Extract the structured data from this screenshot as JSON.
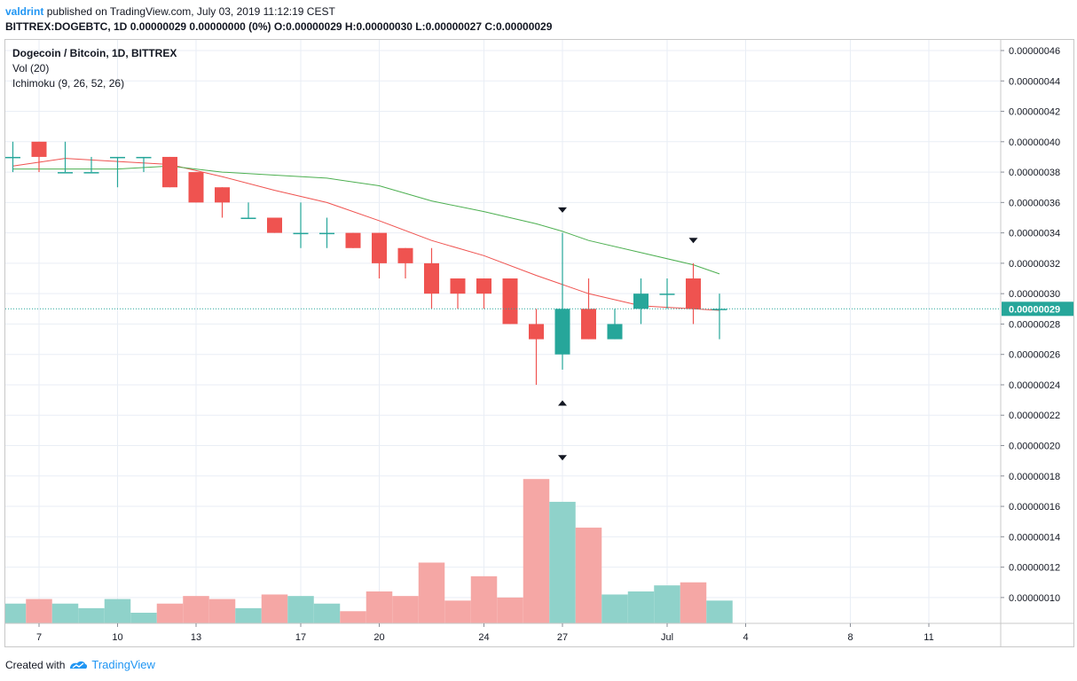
{
  "header": {
    "user": "valdrint",
    "published_text": "published on TradingView.com, July 03, 2019 11:12:19 CEST",
    "symbol": "BITTREX:DOGEBTC, 1D",
    "ohlc_text": "0.00000029 0.00000000 (0%) O:0.00000029 H:0.00000030 L:0.00000027 C:0.00000029"
  },
  "legend": {
    "title": "Dogecoin / Bitcoin, 1D, BITTREX",
    "vol": "Vol (20)",
    "ichimoku": "Ichimoku (9, 26, 52, 26)"
  },
  "footer": {
    "created_with": "Created with",
    "brand": "TradingView"
  },
  "chart_data": {
    "type": "candlestick",
    "title": "Dogecoin / Bitcoin, 1D, BITTREX",
    "y_range": [
      8.3e-08,
      4.67e-07
    ],
    "y_ticks": [
      4.6e-07,
      4.4e-07,
      4.2e-07,
      4e-07,
      3.8e-07,
      3.6e-07,
      3.4e-07,
      3.2e-07,
      3e-07,
      2.8e-07,
      2.6e-07,
      2.4e-07,
      2.2e-07,
      2e-07,
      1.8e-07,
      1.6e-07,
      1.4e-07,
      1.2e-07,
      1e-07
    ],
    "y_tick_labels": [
      "0.00000046",
      "0.00000044",
      "0.00000042",
      "0.00000040",
      "0.00000038",
      "0.00000036",
      "0.00000034",
      "0.00000032",
      "0.00000030",
      "0.00000028",
      "0.00000026",
      "0.00000024",
      "0.00000022",
      "0.00000020",
      "0.00000018",
      "0.00000016",
      "0.00000014",
      "0.00000012",
      "0.00000010"
    ],
    "x_tick_labels": [
      {
        "label": "7",
        "day": 7
      },
      {
        "label": "10",
        "day": 10
      },
      {
        "label": "13",
        "day": 13
      },
      {
        "label": "17",
        "day": 17
      },
      {
        "label": "20",
        "day": 20
      },
      {
        "label": "24",
        "day": 24
      },
      {
        "label": "27",
        "day": 27
      },
      {
        "label": "Jul",
        "day": 31
      },
      {
        "label": "4",
        "day": 34
      },
      {
        "label": "8",
        "day": 38
      },
      {
        "label": "11",
        "day": 41
      }
    ],
    "last_price_label": "0.00000029",
    "last_price": 2.9e-07,
    "candles": [
      {
        "day": 6,
        "o": 3.9e-07,
        "h": 4e-07,
        "l": 3.8e-07,
        "c": 3.9e-07,
        "vol": 9.6e-08
      },
      {
        "day": 7,
        "o": 4e-07,
        "h": 4e-07,
        "l": 3.8e-07,
        "c": 3.9e-07,
        "vol": 9.9e-08
      },
      {
        "day": 8,
        "o": 3.8e-07,
        "h": 4e-07,
        "l": 3.8e-07,
        "c": 3.8e-07,
        "vol": 9.6e-08
      },
      {
        "day": 9,
        "o": 3.8e-07,
        "h": 3.9e-07,
        "l": 3.8e-07,
        "c": 3.8e-07,
        "vol": 9.3e-08
      },
      {
        "day": 10,
        "o": 3.9e-07,
        "h": 3.9e-07,
        "l": 3.7e-07,
        "c": 3.9e-07,
        "vol": 9.9e-08
      },
      {
        "day": 11,
        "o": 3.9e-07,
        "h": 3.9e-07,
        "l": 3.8e-07,
        "c": 3.9e-07,
        "vol": 9e-08
      },
      {
        "day": 12,
        "o": 3.9e-07,
        "h": 3.9e-07,
        "l": 3.7e-07,
        "c": 3.7e-07,
        "vol": 9.6e-08
      },
      {
        "day": 13,
        "o": 3.8e-07,
        "h": 3.8e-07,
        "l": 3.6e-07,
        "c": 3.6e-07,
        "vol": 1.01e-07
      },
      {
        "day": 14,
        "o": 3.7e-07,
        "h": 3.7e-07,
        "l": 3.5e-07,
        "c": 3.6e-07,
        "vol": 9.9e-08
      },
      {
        "day": 15,
        "o": 3.5e-07,
        "h": 3.6e-07,
        "l": 3.5e-07,
        "c": 3.5e-07,
        "vol": 9.3e-08
      },
      {
        "day": 16,
        "o": 3.5e-07,
        "h": 3.5e-07,
        "l": 3.4e-07,
        "c": 3.4e-07,
        "vol": 1.02e-07
      },
      {
        "day": 17,
        "o": 3.4e-07,
        "h": 3.6e-07,
        "l": 3.3e-07,
        "c": 3.4e-07,
        "vol": 1.01e-07
      },
      {
        "day": 18,
        "o": 3.4e-07,
        "h": 3.5e-07,
        "l": 3.3e-07,
        "c": 3.4e-07,
        "vol": 9.6e-08
      },
      {
        "day": 19,
        "o": 3.4e-07,
        "h": 3.4e-07,
        "l": 3.3e-07,
        "c": 3.3e-07,
        "vol": 9.1e-08
      },
      {
        "day": 20,
        "o": 3.4e-07,
        "h": 3.4e-07,
        "l": 3.1e-07,
        "c": 3.2e-07,
        "vol": 1.04e-07
      },
      {
        "day": 21,
        "o": 3.3e-07,
        "h": 3.3e-07,
        "l": 3.1e-07,
        "c": 3.2e-07,
        "vol": 1.01e-07
      },
      {
        "day": 22,
        "o": 3.2e-07,
        "h": 3.3e-07,
        "l": 2.9e-07,
        "c": 3e-07,
        "vol": 1.23e-07
      },
      {
        "day": 23,
        "o": 3.1e-07,
        "h": 3.1e-07,
        "l": 2.9e-07,
        "c": 3e-07,
        "vol": 9.8e-08
      },
      {
        "day": 24,
        "o": 3.1e-07,
        "h": 3.1e-07,
        "l": 2.9e-07,
        "c": 3e-07,
        "vol": 1.14e-07
      },
      {
        "day": 25,
        "o": 3.1e-07,
        "h": 3.1e-07,
        "l": 2.8e-07,
        "c": 2.8e-07,
        "vol": 1e-07
      },
      {
        "day": 26,
        "o": 2.8e-07,
        "h": 2.9e-07,
        "l": 2.4e-07,
        "c": 2.7e-07,
        "vol": 1.78e-07
      },
      {
        "day": 27,
        "o": 2.6e-07,
        "h": 3.4e-07,
        "l": 2.5e-07,
        "c": 2.9e-07,
        "vol": 1.63e-07
      },
      {
        "day": 28,
        "o": 2.9e-07,
        "h": 3.1e-07,
        "l": 2.7e-07,
        "c": 2.7e-07,
        "vol": 1.46e-07
      },
      {
        "day": 29,
        "o": 2.7e-07,
        "h": 2.9e-07,
        "l": 2.7e-07,
        "c": 2.8e-07,
        "vol": 1.02e-07
      },
      {
        "day": 30,
        "o": 2.9e-07,
        "h": 3.1e-07,
        "l": 2.8e-07,
        "c": 3e-07,
        "vol": 1.04e-07
      },
      {
        "day": 31,
        "o": 3e-07,
        "h": 3.1e-07,
        "l": 2.9e-07,
        "c": 3e-07,
        "vol": 1.08e-07
      },
      {
        "day": 32,
        "o": 3.1e-07,
        "h": 3.2e-07,
        "l": 2.8e-07,
        "c": 2.9e-07,
        "vol": 1.1e-07
      },
      {
        "day": 33,
        "o": 2.9e-07,
        "h": 3e-07,
        "l": 2.7e-07,
        "c": 2.9e-07,
        "vol": 9.8e-08
      }
    ],
    "ichimoku_lines": [
      {
        "name": "conversion",
        "color": "#ef5350",
        "points": [
          [
            6,
            3.84e-07
          ],
          [
            8,
            3.89e-07
          ],
          [
            10,
            3.87e-07
          ],
          [
            12,
            3.85e-07
          ],
          [
            14,
            3.77e-07
          ],
          [
            16,
            3.68e-07
          ],
          [
            18,
            3.6e-07
          ],
          [
            20,
            3.48e-07
          ],
          [
            22,
            3.35e-07
          ],
          [
            24,
            3.25e-07
          ],
          [
            26,
            3.12e-07
          ],
          [
            28,
            3e-07
          ],
          [
            30,
            2.92e-07
          ],
          [
            32,
            2.9e-07
          ],
          [
            33,
            2.89e-07
          ]
        ]
      },
      {
        "name": "base",
        "color": "#4caf50",
        "points": [
          [
            6,
            3.82e-07
          ],
          [
            10,
            3.82e-07
          ],
          [
            12,
            3.84e-07
          ],
          [
            14,
            3.8e-07
          ],
          [
            16,
            3.78e-07
          ],
          [
            18,
            3.76e-07
          ],
          [
            20,
            3.71e-07
          ],
          [
            22,
            3.61e-07
          ],
          [
            24,
            3.54e-07
          ],
          [
            26,
            3.46e-07
          ],
          [
            27,
            3.41e-07
          ],
          [
            28,
            3.35e-07
          ],
          [
            30,
            3.27e-07
          ],
          [
            32,
            3.19e-07
          ],
          [
            33,
            3.13e-07
          ]
        ]
      }
    ],
    "markers": [
      {
        "day": 27,
        "value": 3.55e-07,
        "dir": "down"
      },
      {
        "day": 27,
        "value": 2.28e-07,
        "dir": "up"
      },
      {
        "day": 27,
        "value": 1.92e-07,
        "dir": "down"
      },
      {
        "day": 32,
        "value": 3.35e-07,
        "dir": "down"
      }
    ],
    "colors": {
      "up": "#26a69a",
      "down": "#ef5350",
      "vol_up": "#8fd2ca",
      "vol_down": "#f5a7a5",
      "grid": "#e9eef5",
      "price_line": "#26a69a"
    }
  }
}
